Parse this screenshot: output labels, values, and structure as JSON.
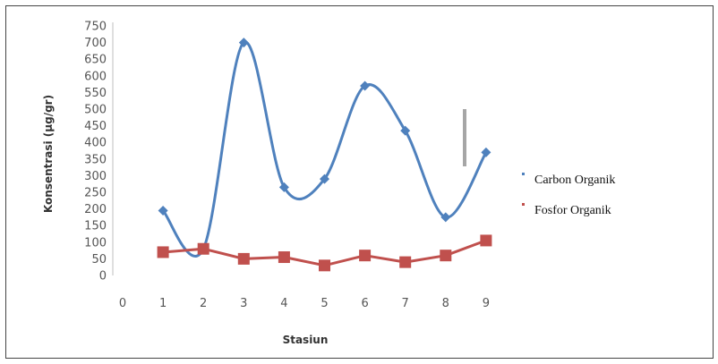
{
  "chart_data": {
    "type": "line",
    "x": [
      1,
      2,
      3,
      4,
      5,
      6,
      7,
      8,
      9
    ],
    "x_ticks": [
      0,
      1,
      2,
      3,
      4,
      5,
      6,
      7,
      8,
      9
    ],
    "y_ticks": [
      0,
      50,
      100,
      150,
      200,
      250,
      300,
      350,
      400,
      450,
      500,
      550,
      600,
      650,
      700,
      750
    ],
    "xlim": [
      0,
      9
    ],
    "ylim": [
      0,
      750
    ],
    "xlabel": "Stasiun",
    "ylabel": "Konsentrasi (µg/gr)",
    "grid": false,
    "legend_position": "right",
    "series": [
      {
        "name": "Carbon Organik",
        "color": "#4f81bd",
        "marker": "diamond",
        "smooth": true,
        "values": [
          195,
          80,
          700,
          265,
          290,
          570,
          435,
          175,
          370
        ]
      },
      {
        "name": "Fosfor Organik",
        "color": "#c0504d",
        "marker": "square",
        "smooth": false,
        "values": [
          70,
          80,
          50,
          55,
          30,
          60,
          40,
          60,
          105
        ]
      }
    ]
  }
}
